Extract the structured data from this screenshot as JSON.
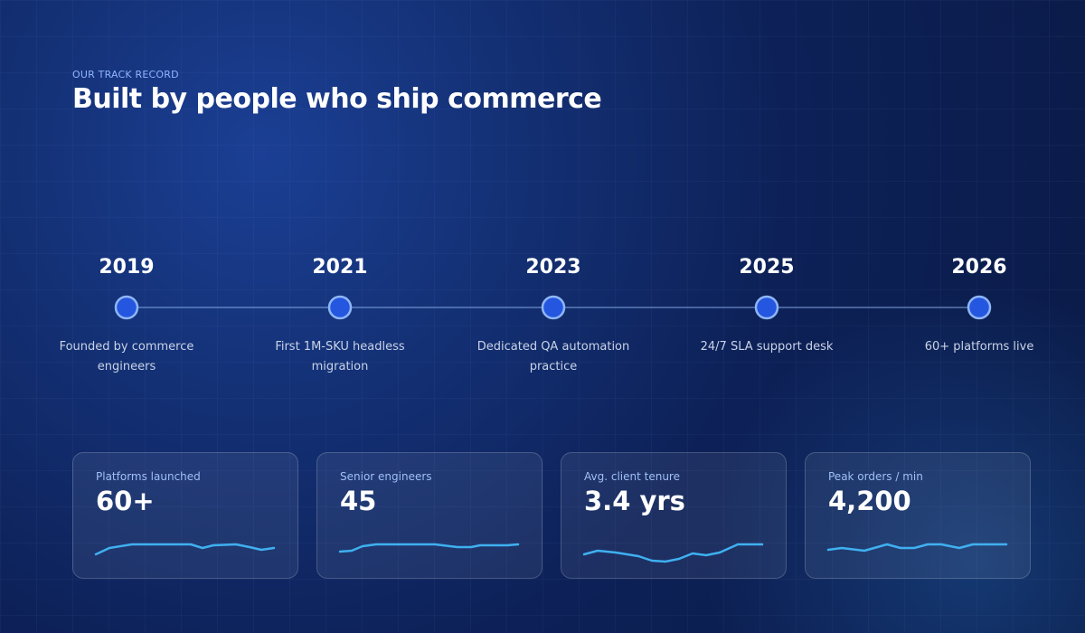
{
  "header": {
    "eyebrow": "OUR TRACK RECORD",
    "title": "Built by people who ship commerce"
  },
  "timeline": [
    {
      "year": "2019",
      "text": "Founded by commerce engineers"
    },
    {
      "year": "2021",
      "text": "First 1M-SKU headless migration"
    },
    {
      "year": "2023",
      "text": "Dedicated QA automation practice"
    },
    {
      "year": "2025",
      "text": "24/7 SLA support desk"
    },
    {
      "year": "2026",
      "text": "60+ platforms live"
    }
  ],
  "stats": [
    {
      "label": "Platforms launched",
      "value": "60+"
    },
    {
      "label": "Senior engineers",
      "value": "45"
    },
    {
      "label": "Avg. client tenure",
      "value": "3.4 yrs"
    },
    {
      "label": "Peak orders / min",
      "value": "4,200"
    }
  ]
}
